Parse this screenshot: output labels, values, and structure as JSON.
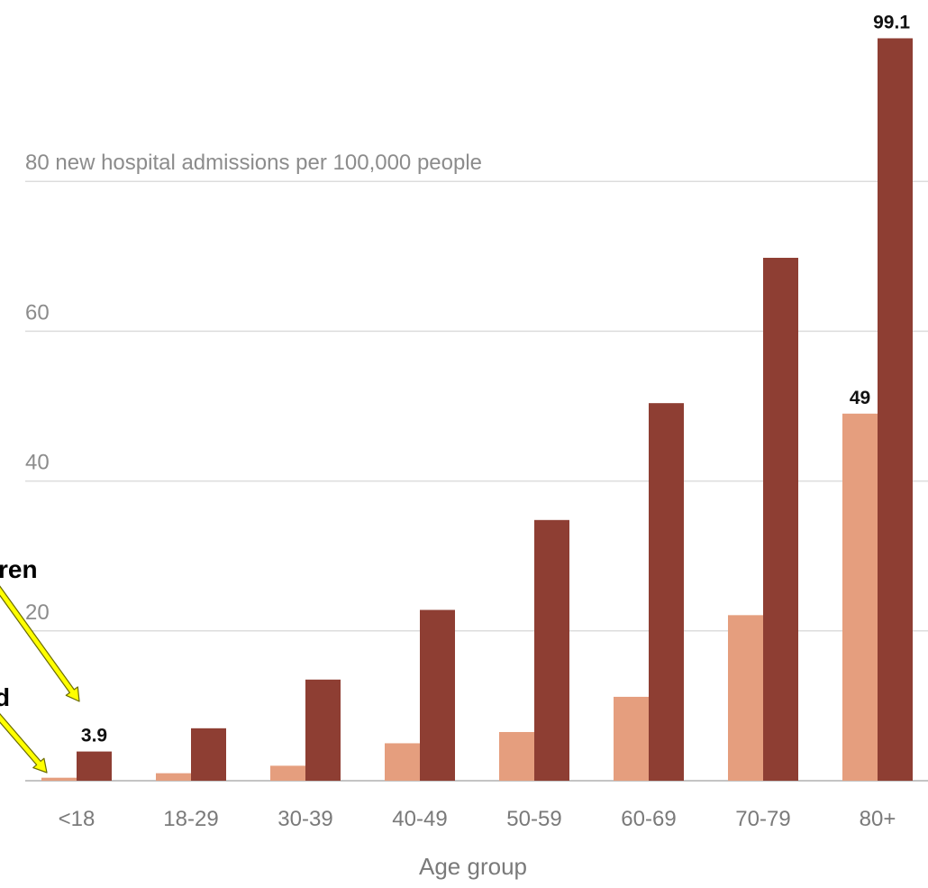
{
  "chart_data": {
    "type": "bar",
    "xlabel": "Age group",
    "ylabel": "new hospital admissions per 100,000 people",
    "ylim": [
      0,
      100
    ],
    "yticks": [
      20,
      40,
      60,
      80
    ],
    "grid": true,
    "categories": [
      "<18",
      "18-29",
      "30-39",
      "40-49",
      "50-59",
      "60-69",
      "70-79",
      "80+"
    ],
    "series": [
      {
        "values": [
          0.4,
          1.0,
          2.0,
          5.0,
          6.5,
          11.2,
          22.1,
          49
        ],
        "color": "#e59e7e"
      },
      {
        "values": [
          3.9,
          7.0,
          13.5,
          22.8,
          34.8,
          50.4,
          69.8,
          99.1
        ],
        "color": "#8e3e33"
      }
    ],
    "data_labels": [
      {
        "series": 1,
        "category": 0,
        "text": "3.9"
      },
      {
        "series": 0,
        "category": 7,
        "text": "49"
      },
      {
        "series": 1,
        "category": 7,
        "text": "99.1"
      }
    ],
    "annotations": [
      {
        "text": "ren",
        "target_series": 1
      },
      {
        "text": "d",
        "target_series": 0
      }
    ],
    "annotation_colors": {
      "fill": "#ffff00",
      "stroke": "#6b6b00"
    }
  }
}
